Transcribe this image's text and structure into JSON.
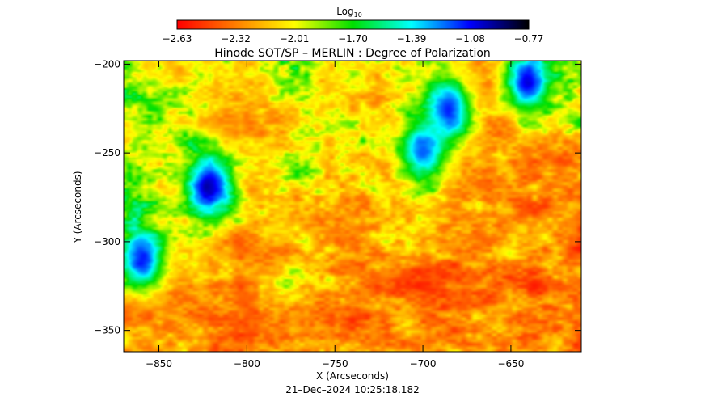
{
  "chart_data": {
    "type": "heatmap",
    "title": "Hinode SOT/SP – MERLIN : Degree of Polarization",
    "xlabel": "X (Arcseconds)",
    "ylabel": "Y (Arcseconds)",
    "timestamp": "21–Dec–2024 10:25:18.182",
    "xlim": [
      -870,
      -610
    ],
    "ylim": [
      -362,
      -198
    ],
    "x_ticks": [
      -850,
      -800,
      -750,
      -700,
      -650
    ],
    "x_tick_labels": [
      "−850",
      "−800",
      "−750",
      "−700",
      "−650"
    ],
    "y_ticks": [
      -200,
      -250,
      -300,
      -350
    ],
    "y_tick_labels": [
      "−200",
      "−250",
      "−300",
      "−350"
    ],
    "colorbar": {
      "label_base": "Log",
      "label_sub": "10",
      "range": [
        -2.63,
        -0.77
      ],
      "ticks": [
        -2.63,
        -2.32,
        -2.01,
        -1.7,
        -1.39,
        -1.08,
        -0.77
      ],
      "tick_labels": [
        "−2.63",
        "−2.32",
        "−2.01",
        "−1.70",
        "−1.39",
        "−1.08",
        "−0.77"
      ],
      "colors": [
        "#ff0000",
        "#ff8000",
        "#ffff00",
        "#00e000",
        "#00ffff",
        "#0000ff",
        "#000000"
      ]
    },
    "features": [
      {
        "x": -822,
        "y": -268,
        "value": -1.0,
        "label": ""
      },
      {
        "x": -860,
        "y": -310,
        "value": -1.1,
        "label": ""
      },
      {
        "x": -700,
        "y": -248,
        "value": -1.2,
        "label": ""
      },
      {
        "x": -685,
        "y": -225,
        "value": -1.1,
        "label": ""
      },
      {
        "x": -640,
        "y": -210,
        "value": -1.05,
        "label": ""
      }
    ]
  }
}
